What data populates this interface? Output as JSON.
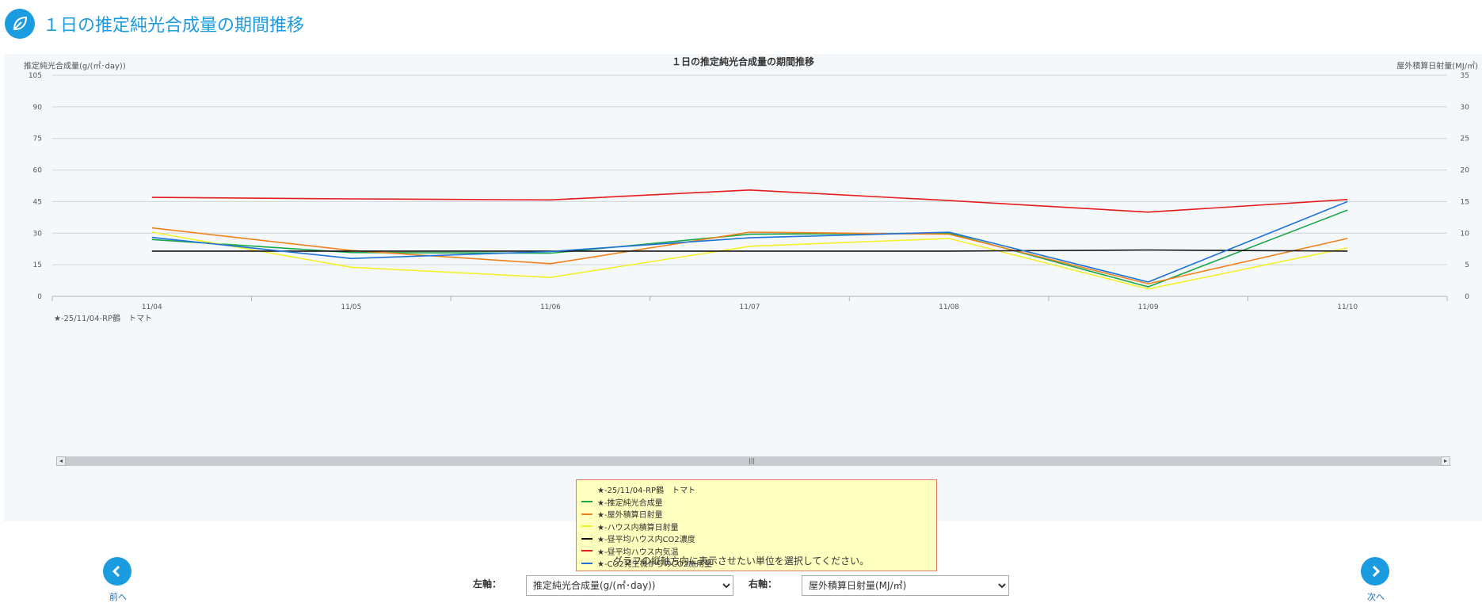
{
  "page": {
    "title": "１日の推定純光合成量の期間推移"
  },
  "chart_data": {
    "type": "line",
    "title": "１日の推定純光合成量の期間推移",
    "left_axis_label": "推定純光合成量(g/(㎡･day))",
    "right_axis_label": "屋外積算日射量(MJ/㎡)",
    "categories": [
      "11/04",
      "11/05",
      "11/06",
      "11/07",
      "11/08",
      "11/09",
      "11/10"
    ],
    "y_left": {
      "min": 0,
      "max": 105,
      "ticks": [
        0,
        15,
        30,
        45,
        60,
        75,
        90,
        105
      ]
    },
    "y_right": {
      "min": 0,
      "max": 35,
      "ticks": [
        0,
        5,
        10,
        15,
        20,
        25,
        30,
        35
      ]
    },
    "group_label": "★-25/11/04-RP鶴　トマト",
    "grid": true,
    "legend_placement": "bottom-center",
    "series": [
      {
        "name": "★-推定純光合成量",
        "color": "#1aa64a",
        "values": [
          27,
          20.8,
          20.5,
          29.5,
          30,
          4.5,
          41
        ]
      },
      {
        "name": "★-屋外積算日射量",
        "color": "#f0821e",
        "values": [
          32.5,
          21.8,
          15.5,
          30.5,
          29.5,
          6,
          27.5
        ]
      },
      {
        "name": "★-ハウス内積算日射量",
        "color": "#f2f22a",
        "values": [
          30.5,
          13.8,
          9,
          23.8,
          27.5,
          3.5,
          23
        ]
      },
      {
        "name": "★-昼平均ハウス内CO2濃度",
        "color": "#111111",
        "values": [
          21.5,
          21.5,
          21.5,
          21.5,
          21.5,
          22,
          21.5
        ]
      },
      {
        "name": "★-昼平均ハウス内気温",
        "color": "#e51c1c",
        "values": [
          47,
          46.3,
          45.8,
          50.5,
          45.5,
          40,
          46
        ]
      },
      {
        "name": "★-CO2発生機からのCO2施用量",
        "color": "#1f73d6",
        "values": [
          28,
          18,
          21.3,
          27.8,
          30.5,
          6.8,
          45
        ]
      }
    ]
  },
  "legend": {
    "header": "★-25/11/04-RP鶴　トマト",
    "items": [
      {
        "label": "★-推定純光合成量",
        "color": "#1aa64a"
      },
      {
        "label": "★-屋外積算日射量",
        "color": "#f0821e"
      },
      {
        "label": "★-ハウス内積算日射量",
        "color": "#f2f22a"
      },
      {
        "label": "★-昼平均ハウス内CO2濃度",
        "color": "#111111"
      },
      {
        "label": "★-昼平均ハウス内気温",
        "color": "#e51c1c"
      },
      {
        "label": "★-CO2発生機からのCO2施用量",
        "color": "#1f73d6"
      }
    ]
  },
  "controls": {
    "hint": "グラフの縦軸方向に表示させたい単位を選択してください。",
    "left_label": "左軸：",
    "right_label": "右軸：",
    "left_selected": "推定純光合成量(g/(㎡･day))",
    "right_selected": "屋外積算日射量(MJ/㎡)"
  },
  "nav": {
    "prev_label": "前へ",
    "next_label": "次へ"
  },
  "icons": {
    "logo": "leaf-icon",
    "prev": "chevron-left-icon",
    "next": "chevron-right-icon"
  },
  "colors": {
    "accent": "#1b9be0"
  }
}
